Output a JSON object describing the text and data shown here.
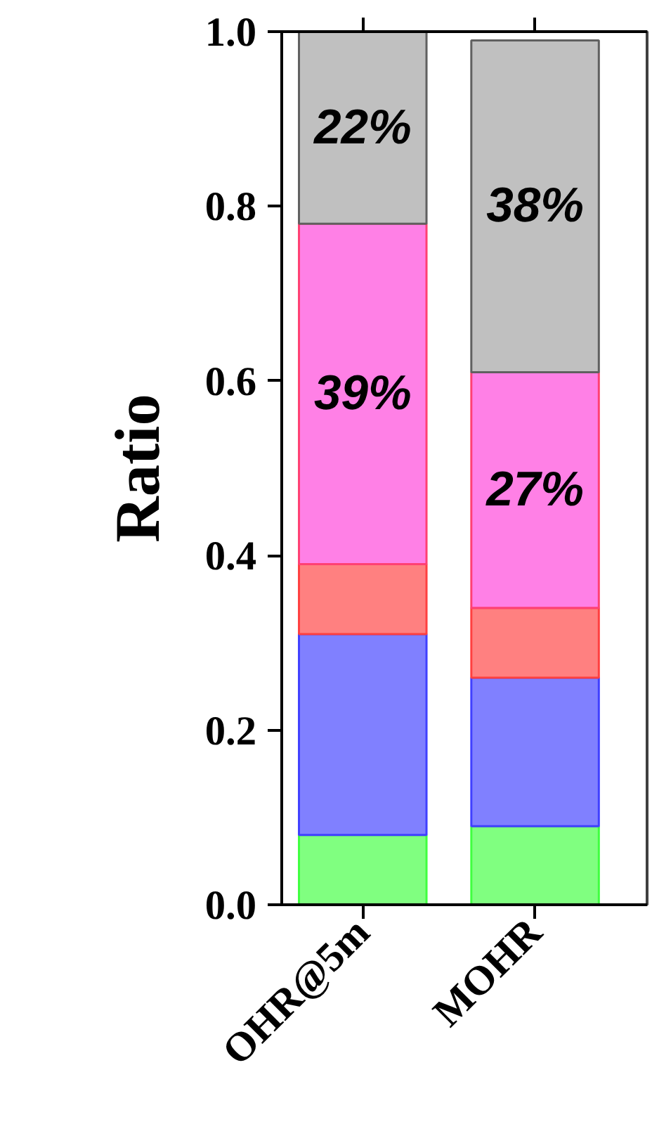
{
  "chart_data": {
    "type": "bar",
    "stacked": true,
    "ylabel": "Ratio",
    "categories": [
      "OHR@5m",
      "MOHR"
    ],
    "series": [
      {
        "color": "#80ff80",
        "values": [
          0.08,
          0.09
        ]
      },
      {
        "color": "#8080ff",
        "values": [
          0.23,
          0.17
        ]
      },
      {
        "color": "#ff8080",
        "values": [
          0.08,
          0.08
        ]
      },
      {
        "color": "#ff80e6",
        "values": [
          0.39,
          0.27
        ],
        "value_labels": [
          "39%",
          "27%"
        ]
      },
      {
        "color": "#c0c0c0",
        "values": [
          0.22,
          0.38
        ],
        "value_labels": [
          "22%",
          "38%"
        ]
      }
    ],
    "ylim": [
      0,
      1.0
    ],
    "yticks": [
      {
        "value": 0,
        "label": "0.0"
      },
      {
        "value": 0.2,
        "label": "0.2"
      },
      {
        "value": 0.4,
        "label": "0.4"
      },
      {
        "value": 0.6,
        "label": "0.6"
      },
      {
        "value": 0.8,
        "label": "0.8"
      },
      {
        "value": 1.0,
        "label": "1.0"
      }
    ],
    "grid": false
  }
}
